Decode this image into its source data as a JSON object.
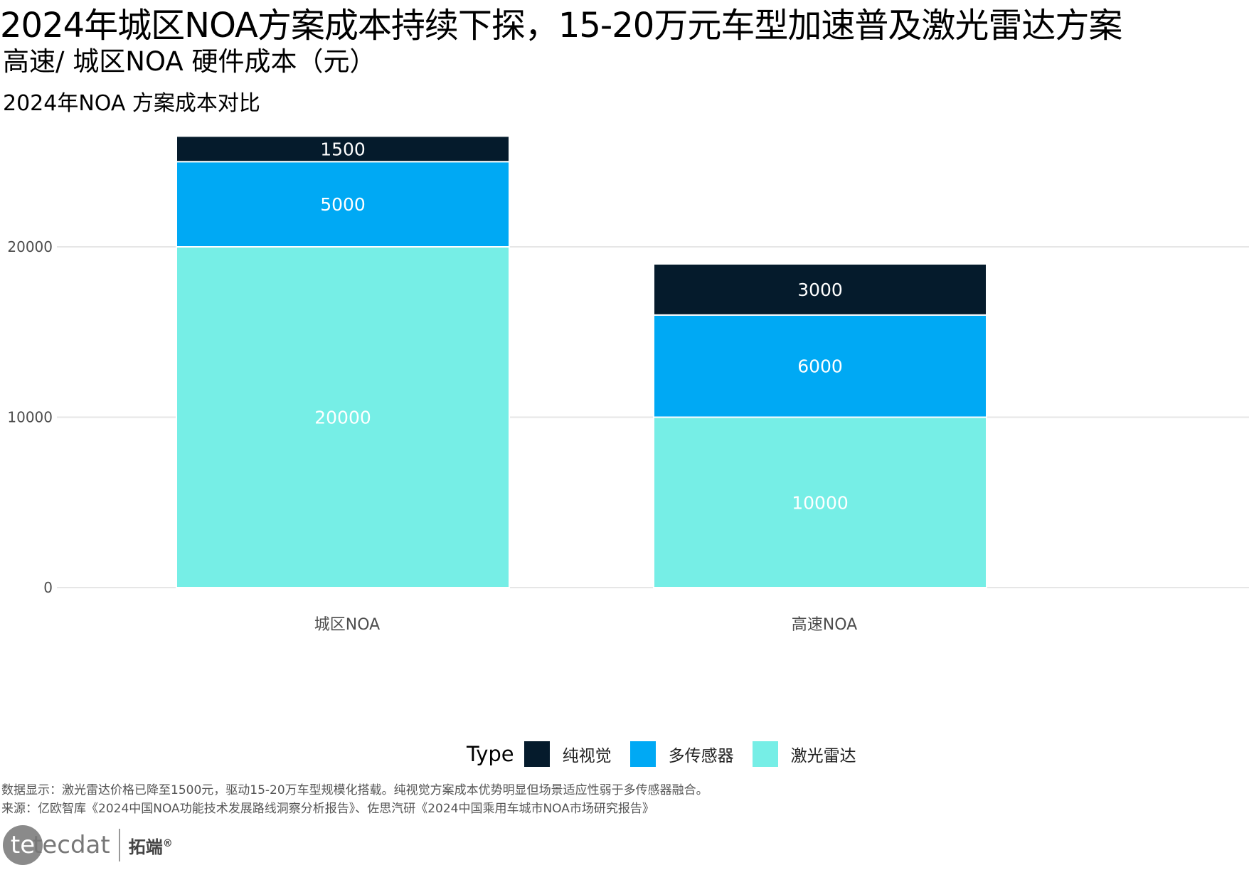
{
  "header": {
    "title": "2024年城区NOA方案成本持续下探，15-20万元车型加速普及激光雷达方案",
    "subtitle": "高速/ 城区NOA 硬件成本（元）",
    "chart_title": "2024年NOA 方案成本对比"
  },
  "legend": {
    "title": "Type",
    "items": [
      {
        "label": "纯视觉",
        "color": "#051B2C"
      },
      {
        "label": "多传感器",
        "color": "#00A9F4"
      },
      {
        "label": "激光雷达",
        "color": "#76EEE6"
      }
    ]
  },
  "notes": {
    "line1": "数据显示：激光雷达价格已降至1500元，驱动15-20万车型规模化搭载。纯视觉方案成本优势明显但场景适应性弱于多传感器融合。",
    "line2": "来源：亿欧智库《2024中国NOA功能技术发展路线洞察分析报告》、佐思汽研《2024中国乘用车城市NOA市场研究报告》"
  },
  "logo": {
    "brand": "tecdat",
    "cn": "拓端",
    "reg": "®"
  },
  "chart_data": {
    "type": "bar",
    "stacked": true,
    "title": "2024年NOA 方案成本对比",
    "xlabel": "",
    "ylabel": "",
    "categories": [
      "城区NOA",
      "高速NOA"
    ],
    "series": [
      {
        "name": "激光雷达",
        "color": "#76EEE6",
        "values": [
          20000,
          10000
        ]
      },
      {
        "name": "多传感器",
        "color": "#00A9F4",
        "values": [
          5000,
          6000
        ]
      },
      {
        "name": "纯视觉",
        "color": "#051B2C",
        "values": [
          1500,
          3000
        ]
      }
    ],
    "yticks": [
      0,
      10000,
      20000
    ],
    "ylim": [
      0,
      27000
    ],
    "grid": true,
    "legend_position": "bottom"
  }
}
